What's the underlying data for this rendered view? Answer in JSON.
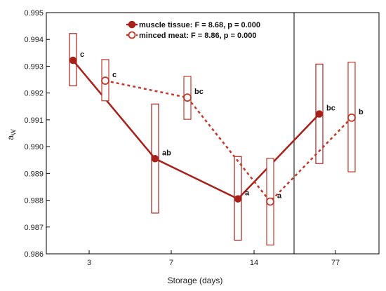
{
  "chart_data": {
    "type": "line",
    "title": "",
    "xlabel": "Storage (days)",
    "ylabel": "a",
    "ylabel_sub": "W",
    "categories": [
      "3",
      "7",
      "14",
      "77"
    ],
    "ylim": [
      0.986,
      0.995
    ],
    "yticks": [
      "0.986",
      "0.987",
      "0.988",
      "0.989",
      "0.990",
      "0.991",
      "0.992",
      "0.993",
      "0.994",
      "0.995"
    ],
    "grid": false,
    "legend_position": "top",
    "series": [
      {
        "name": "muscle tissue: F = 8.68, p = 0.000",
        "color": "#a8201a",
        "line_style": "solid",
        "marker": "filled-circle",
        "values": [
          0.99322,
          0.98955,
          0.98805,
          0.99122
        ],
        "ci_low": [
          0.99227,
          0.98752,
          0.98651,
          0.98937
        ],
        "ci_high": [
          0.99422,
          0.99159,
          0.98963,
          0.99308
        ],
        "labels": [
          "c",
          "ab",
          "a",
          "bc"
        ]
      },
      {
        "name": "minced meat: F = 8.86, p = 0.000",
        "color": "#c0392b",
        "line_style": "dashed",
        "marker": "open-circle",
        "values": [
          0.99246,
          0.99183,
          0.98795,
          0.99108
        ],
        "ci_low": [
          0.99171,
          0.99102,
          0.98633,
          0.98906
        ],
        "ci_high": [
          0.99325,
          0.99262,
          0.98956,
          0.99315
        ],
        "labels": [
          "c",
          "bc",
          "a",
          "b"
        ]
      }
    ],
    "divider_after_category": "14"
  }
}
